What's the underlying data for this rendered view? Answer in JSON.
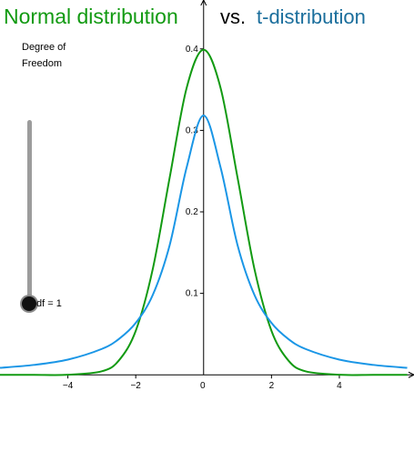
{
  "titles": {
    "normal": "Normal distribution",
    "vs": "vs.",
    "t": "t-distribution"
  },
  "slider": {
    "caption_line1": "Degree of",
    "caption_line2": "Freedom",
    "value_text": "df = 1",
    "value": 1
  },
  "colors": {
    "normal": "#129a12",
    "t": "#1a96e6",
    "title_t": "#1a6e9c",
    "axis": "#000000",
    "slider_track": "#9c9c9c"
  },
  "chart_data": {
    "type": "line",
    "title": "",
    "xlabel": "",
    "ylabel": "",
    "xlim": [
      -6.0,
      6.2
    ],
    "ylim": [
      -0.012,
      0.46
    ],
    "x_ticks": [
      {
        "value": -4,
        "label": "−4"
      },
      {
        "value": -2,
        "label": "−2"
      },
      {
        "value": 0,
        "label": "0"
      },
      {
        "value": 2,
        "label": "2"
      },
      {
        "value": 4,
        "label": "4"
      }
    ],
    "y_ticks": [
      {
        "value": 0.1,
        "label": "0.1"
      },
      {
        "value": 0.2,
        "label": "0.2"
      },
      {
        "value": 0.3,
        "label": "0.3"
      },
      {
        "value": 0.4,
        "label": "0.4"
      }
    ],
    "grid": false,
    "series": [
      {
        "curve": "normal",
        "color_key": "normal",
        "x": [
          -6,
          -5,
          -4,
          -3,
          -2.5,
          -2,
          -1.5,
          -1,
          -0.5,
          0,
          0.5,
          1,
          1.5,
          2,
          2.5,
          3,
          4,
          5,
          6
        ],
        "y": [
          0.0,
          0.0,
          0.0001,
          0.0044,
          0.0175,
          0.054,
          0.1295,
          0.242,
          0.3521,
          0.3989,
          0.3521,
          0.242,
          0.1295,
          0.054,
          0.0175,
          0.0044,
          0.0001,
          0.0,
          0.0
        ]
      },
      {
        "curve": "t",
        "color_key": "t",
        "x": [
          -6,
          -5,
          -4,
          -3,
          -2.5,
          -2,
          -1.5,
          -1,
          -0.5,
          0,
          0.5,
          1,
          1.5,
          2,
          2.5,
          3,
          4,
          5,
          6
        ],
        "y": [
          0.0086,
          0.0122,
          0.0187,
          0.0318,
          0.0439,
          0.0637,
          0.0979,
          0.1592,
          0.2546,
          0.3183,
          0.2546,
          0.1592,
          0.0979,
          0.0637,
          0.0439,
          0.0318,
          0.0187,
          0.0122,
          0.0086
        ]
      }
    ]
  }
}
